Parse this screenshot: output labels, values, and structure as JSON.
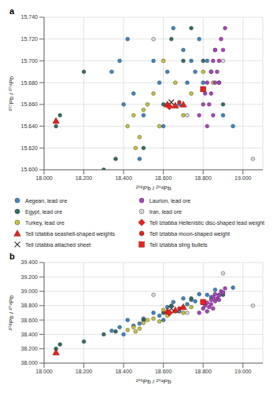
{
  "chart_data": [
    {
      "type": "scatter",
      "title": "a",
      "x_label": "²⁰⁶Pb / ²⁰⁴Pb",
      "y_label": "²⁰⁷Pb / ²⁰⁴Pb",
      "xlim": [
        18.0,
        19.1
      ],
      "ylim": [
        15.6,
        15.74
      ],
      "xticks": [
        {
          "value": 18.0,
          "label": "18.000"
        },
        {
          "value": 18.2,
          "label": "18.200"
        },
        {
          "value": 18.4,
          "label": "18.400"
        },
        {
          "value": 18.6,
          "label": "18.600"
        },
        {
          "value": 18.8,
          "label": "18.800"
        },
        {
          "value": 19.0,
          "label": "19.000"
        }
      ],
      "yticks": [
        {
          "value": 15.6,
          "label": "15.600"
        },
        {
          "value": 15.62,
          "label": "15.620"
        },
        {
          "value": 15.64,
          "label": "15.640"
        },
        {
          "value": 15.66,
          "label": "15.660"
        },
        {
          "value": 15.68,
          "label": "15.680"
        },
        {
          "value": 15.7,
          "label": "15.700"
        },
        {
          "value": 15.72,
          "label": "15.720"
        },
        {
          "value": 15.74,
          "label": "15.740"
        }
      ],
      "grid": true,
      "legend": "bottom",
      "series": [
        {
          "name": "Aegean, lead ore",
          "color": "#3a87c8",
          "marker": "circle",
          "x": [
            18.34,
            18.38,
            18.42,
            18.45,
            18.5,
            18.55,
            18.58,
            18.62,
            18.65,
            18.68,
            18.7,
            18.72,
            18.74,
            18.76,
            18.78,
            18.8,
            18.82,
            18.84,
            18.86,
            18.88,
            18.9,
            18.95,
            18.4,
            18.6,
            18.48
          ],
          "y": [
            15.69,
            15.7,
            15.72,
            15.67,
            15.65,
            15.7,
            15.68,
            15.69,
            15.73,
            15.66,
            15.71,
            15.68,
            15.7,
            15.69,
            15.72,
            15.68,
            15.7,
            15.69,
            15.71,
            15.68,
            15.65,
            15.64,
            15.66,
            15.64,
            15.61
          ]
        },
        {
          "name": "Egypt, lead ore",
          "color": "#2f6d62",
          "marker": "circle",
          "x": [
            18.06,
            18.08,
            18.3,
            18.5,
            18.6,
            18.64,
            18.7,
            18.74,
            18.8,
            18.9,
            18.36,
            18.2
          ],
          "y": [
            15.64,
            15.65,
            15.6,
            15.62,
            15.66,
            15.72,
            15.7,
            15.73,
            15.7,
            15.66,
            15.61,
            15.69
          ]
        },
        {
          "name": "Turkey, lead ore",
          "color": "#c9c23a",
          "marker": "circle",
          "x": [
            18.42,
            18.45,
            18.48,
            18.5,
            18.52,
            18.55,
            18.58,
            18.62,
            18.66,
            18.7,
            18.74,
            18.8,
            18.85,
            18.46,
            18.6
          ],
          "y": [
            15.64,
            15.65,
            15.63,
            15.655,
            15.66,
            15.67,
            15.64,
            15.66,
            15.68,
            15.65,
            15.67,
            15.69,
            15.68,
            15.62,
            15.7
          ]
        },
        {
          "name": "Tell Iztabba seashell-shaped weights",
          "color": "#e8221b",
          "marker": "triangle",
          "x": [
            18.06,
            18.62,
            18.66,
            18.7
          ],
          "y": [
            15.645,
            15.66,
            15.659,
            15.66
          ]
        },
        {
          "name": "Tell Iztabba attached sheet",
          "color": "#333333",
          "marker": "x",
          "x": [
            18.64
          ],
          "y": [
            15.662
          ]
        },
        {
          "name": "Laurion, lead ore",
          "color": "#b23fc4",
          "marker": "circle",
          "x": [
            18.78,
            18.8,
            18.81,
            18.82,
            18.83,
            18.84,
            18.85,
            18.86,
            18.86,
            18.87,
            18.88,
            18.89,
            18.9,
            18.84,
            18.82,
            18.88,
            18.91,
            18.85
          ],
          "y": [
            15.65,
            15.66,
            15.67,
            15.68,
            15.66,
            15.69,
            15.7,
            15.68,
            15.71,
            15.69,
            15.7,
            15.72,
            15.71,
            15.67,
            15.64,
            15.68,
            15.73,
            15.65
          ]
        },
        {
          "name": "Iran, lead ore",
          "color": "#d9d9d9",
          "marker": "circle",
          "x": [
            18.55,
            18.72,
            18.9,
            19.05
          ],
          "y": [
            15.72,
            15.65,
            15.7,
            15.61
          ]
        },
        {
          "name": "Tell Iztabba Hellenistic disc-shaped lead weight",
          "color": "#e8221b",
          "marker": "diamond",
          "x": [
            18.63
          ],
          "y": [
            15.658
          ]
        },
        {
          "name": "Tell Iztabba moon-shaped weight",
          "color": "#e8221b",
          "marker": "circle",
          "x": [
            18.68
          ],
          "y": [
            15.662
          ]
        },
        {
          "name": "Tell Iztabba sling bullets",
          "color": "#e8221b",
          "marker": "square",
          "x": [
            18.8
          ],
          "y": [
            15.674
          ]
        }
      ]
    },
    {
      "type": "scatter",
      "title": "b",
      "x_label": "²⁰⁶Pb / ²⁰⁴Pb",
      "y_label": "²⁰⁸Pb / ²⁰⁴Pb",
      "xlim": [
        18.0,
        19.1
      ],
      "ylim": [
        38.0,
        39.4
      ],
      "xticks": [
        {
          "value": 18.0,
          "label": "18.000"
        },
        {
          "value": 18.2,
          "label": "18.200"
        },
        {
          "value": 18.4,
          "label": "18.400"
        },
        {
          "value": 18.6,
          "label": "18.600"
        },
        {
          "value": 18.8,
          "label": "18.800"
        },
        {
          "value": 19.0,
          "label": "19.000"
        }
      ],
      "yticks": [
        {
          "value": 38.0,
          "label": "38.000"
        },
        {
          "value": 38.2,
          "label": "38.200"
        },
        {
          "value": 38.4,
          "label": "38.400"
        },
        {
          "value": 38.6,
          "label": "38.600"
        },
        {
          "value": 38.8,
          "label": "38.800"
        },
        {
          "value": 39.0,
          "label": "39.000"
        },
        {
          "value": 39.2,
          "label": "39.200"
        },
        {
          "value": 39.4,
          "label": "39.400"
        }
      ],
      "grid": true,
      "series": [
        {
          "name": "Aegean, lead ore",
          "color": "#3a87c8",
          "marker": "circle",
          "x": [
            18.34,
            18.38,
            18.42,
            18.45,
            18.5,
            18.55,
            18.58,
            18.62,
            18.65,
            18.68,
            18.7,
            18.72,
            18.74,
            18.76,
            18.78,
            18.8,
            18.82,
            18.84,
            18.86,
            18.88,
            18.9,
            18.95,
            18.4,
            18.6,
            18.48
          ],
          "y": [
            38.45,
            38.5,
            38.6,
            38.52,
            38.62,
            38.7,
            38.66,
            38.78,
            38.85,
            38.72,
            38.9,
            38.82,
            38.88,
            38.86,
            38.96,
            38.84,
            38.95,
            38.92,
            39.02,
            38.95,
            38.98,
            39.05,
            38.4,
            38.6,
            38.55
          ]
        },
        {
          "name": "Egypt, lead ore",
          "color": "#2f6d62",
          "marker": "circle",
          "x": [
            18.06,
            18.08,
            18.3,
            18.5,
            18.6,
            18.64,
            18.7,
            18.74,
            18.8,
            18.9,
            18.36,
            18.2
          ],
          "y": [
            38.2,
            38.26,
            38.4,
            38.6,
            38.7,
            38.8,
            38.78,
            38.9,
            38.85,
            38.95,
            38.44,
            38.3
          ]
        },
        {
          "name": "Turkey, lead ore",
          "color": "#c9c23a",
          "marker": "circle",
          "x": [
            18.42,
            18.45,
            18.48,
            18.5,
            18.52,
            18.55,
            18.58,
            18.62,
            18.66,
            18.7,
            18.74,
            18.8,
            18.85,
            18.46,
            18.6
          ],
          "y": [
            38.46,
            38.5,
            38.48,
            38.56,
            38.6,
            38.62,
            38.58,
            38.66,
            38.72,
            38.7,
            38.78,
            38.84,
            38.9,
            38.44,
            38.74
          ]
        },
        {
          "name": "Tell Iztabba seashell-shaped weights",
          "color": "#e8221b",
          "marker": "triangle",
          "x": [
            18.06,
            18.62,
            18.66,
            18.7
          ],
          "y": [
            38.15,
            38.72,
            38.74,
            38.78
          ]
        },
        {
          "name": "Tell Iztabba attached sheet",
          "color": "#333333",
          "marker": "x",
          "x": [
            18.64
          ],
          "y": [
            38.76
          ]
        },
        {
          "name": "Laurion, lead ore",
          "color": "#b23fc4",
          "marker": "circle",
          "x": [
            18.78,
            18.8,
            18.81,
            18.82,
            18.83,
            18.84,
            18.85,
            18.86,
            18.86,
            18.87,
            18.88,
            18.89,
            18.9,
            18.84,
            18.82,
            18.88,
            18.91,
            18.85
          ],
          "y": [
            38.7,
            38.76,
            38.8,
            38.84,
            38.78,
            38.88,
            38.92,
            38.86,
            38.96,
            38.9,
            38.94,
            39.0,
            38.98,
            38.82,
            38.72,
            38.88,
            39.04,
            38.76
          ]
        },
        {
          "name": "Iran, lead ore",
          "color": "#d9d9d9",
          "marker": "circle",
          "x": [
            18.55,
            18.72,
            18.9,
            19.05
          ],
          "y": [
            38.95,
            38.7,
            39.25,
            38.8
          ]
        },
        {
          "name": "Tell Iztabba Hellenistic disc-shaped lead weight",
          "color": "#e8221b",
          "marker": "diamond",
          "x": [
            18.63
          ],
          "y": [
            38.7
          ]
        },
        {
          "name": "Tell Iztabba moon-shaped weight",
          "color": "#e8221b",
          "marker": "circle",
          "x": [
            18.68
          ],
          "y": [
            38.76
          ]
        },
        {
          "name": "Tell Iztabba sling bullets",
          "color": "#e8221b",
          "marker": "square",
          "x": [
            18.8
          ],
          "y": [
            38.85
          ]
        }
      ]
    }
  ]
}
